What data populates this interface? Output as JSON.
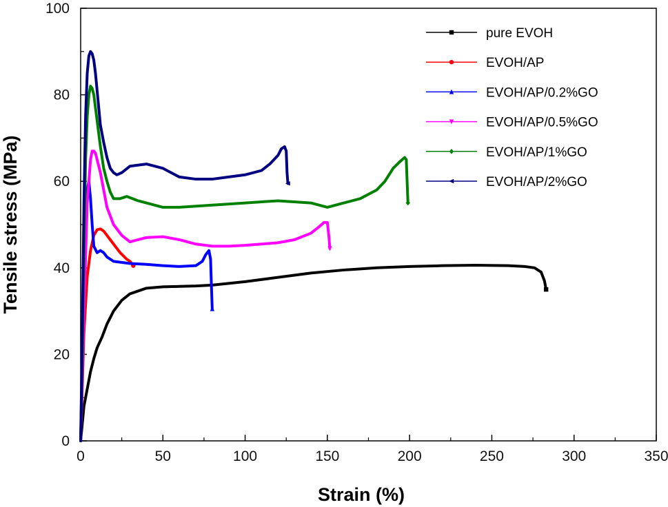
{
  "chart_data": {
    "type": "line",
    "xlabel": "Strain (%)",
    "ylabel": "Tensile stress (MPa)",
    "xlim": [
      0,
      350
    ],
    "ylim": [
      0,
      100
    ],
    "x_ticks": [
      0,
      50,
      100,
      150,
      200,
      250,
      300,
      350
    ],
    "y_ticks": [
      0,
      20,
      40,
      60,
      80,
      100
    ],
    "grid": false,
    "legend": "top-right",
    "series": [
      {
        "name": "pure EVOH",
        "color": "#000000",
        "marker": "square",
        "x": [
          0,
          1,
          2,
          4,
          6,
          8,
          10,
          13,
          16,
          20,
          25,
          30,
          40,
          50,
          60,
          70,
          80,
          100,
          120,
          140,
          160,
          180,
          200,
          220,
          240,
          260,
          270,
          276,
          280,
          282,
          283
        ],
        "y": [
          0,
          4,
          8,
          12,
          16,
          19,
          21.5,
          24,
          27,
          30,
          32.5,
          34,
          35.3,
          35.6,
          35.7,
          35.8,
          36,
          36.8,
          37.8,
          38.8,
          39.5,
          40,
          40.3,
          40.5,
          40.6,
          40.5,
          40.3,
          40,
          39,
          37,
          35
        ]
      },
      {
        "name": "EVOH/AP",
        "color": "#ff0000",
        "marker": "circle",
        "x": [
          0,
          2,
          4,
          6,
          8,
          10,
          12,
          14,
          16,
          18,
          20,
          24,
          28,
          30,
          31,
          32
        ],
        "y": [
          0,
          25,
          38,
          44,
          47.5,
          48.8,
          49,
          48.5,
          47.5,
          46.5,
          45.5,
          43.5,
          42,
          41.5,
          41,
          40.5
        ]
      },
      {
        "name": "EVOH/AP/0.2%GO",
        "color": "#0000ff",
        "marker": "triangle-up",
        "x": [
          0,
          1,
          2,
          3,
          4,
          5,
          6,
          7,
          8,
          10,
          12,
          14,
          16,
          20,
          30,
          40,
          50,
          60,
          70,
          74,
          76,
          78,
          79,
          79.5,
          80
        ],
        "y": [
          0,
          15,
          35,
          50,
          58,
          60,
          56,
          50,
          45,
          43.5,
          44,
          43.5,
          42.5,
          41.5,
          41,
          40.8,
          40.5,
          40.3,
          40.5,
          41.5,
          43,
          44,
          42,
          36,
          30.5
        ]
      },
      {
        "name": "EVOH/AP/0.5%GO",
        "color": "#ff00ff",
        "marker": "triangle-down",
        "x": [
          0,
          2,
          4,
          6,
          7,
          8,
          9,
          10,
          12,
          14,
          16,
          20,
          25,
          30,
          40,
          50,
          60,
          70,
          80,
          90,
          100,
          110,
          120,
          130,
          140,
          145,
          148,
          150,
          151,
          151.5
        ],
        "y": [
          0,
          30,
          55,
          65,
          67,
          67,
          66.5,
          65,
          62,
          58,
          54,
          50,
          47.5,
          46,
          47,
          47.2,
          46.5,
          45.5,
          45,
          45,
          45.2,
          45.5,
          45.8,
          46.5,
          48,
          49.5,
          50.5,
          50.5,
          47,
          44.5
        ]
      },
      {
        "name": "EVOH/AP/1%GO",
        "color": "#008000",
        "marker": "diamond",
        "x": [
          0,
          1,
          2,
          3,
          4,
          5,
          6,
          7,
          8,
          9,
          10,
          12,
          14,
          16,
          18,
          20,
          24,
          28,
          35,
          50,
          60,
          80,
          100,
          120,
          140,
          150,
          160,
          170,
          180,
          185,
          190,
          194,
          197,
          198,
          198.5,
          199
        ],
        "y": [
          0,
          20,
          45,
          65,
          75,
          80,
          82,
          81.5,
          80,
          77,
          74,
          68,
          63,
          60,
          57.5,
          56,
          56,
          56.5,
          55.5,
          54,
          54,
          54.5,
          55,
          55.5,
          55,
          54,
          55,
          56,
          58,
          60,
          63,
          64.5,
          65.5,
          65,
          60,
          55
        ]
      },
      {
        "name": "EVOH/AP/2%GO",
        "color": "#000080",
        "marker": "triangle-left",
        "x": [
          0,
          1,
          2,
          3,
          4,
          5,
          6,
          7,
          8,
          9,
          10,
          11,
          12,
          14,
          16,
          18,
          20,
          22,
          25,
          30,
          40,
          50,
          60,
          70,
          80,
          90,
          100,
          110,
          115,
          120,
          122,
          124,
          125,
          125.5,
          126
        ],
        "y": [
          0,
          25,
          55,
          75,
          85,
          89,
          90,
          89.5,
          88,
          85,
          81,
          77,
          73,
          69,
          65.5,
          63,
          62,
          61.5,
          62,
          63.5,
          64,
          63,
          61,
          60.5,
          60.5,
          61,
          61.5,
          62.5,
          64,
          66,
          67.5,
          68,
          67,
          62,
          59.5
        ]
      }
    ]
  }
}
